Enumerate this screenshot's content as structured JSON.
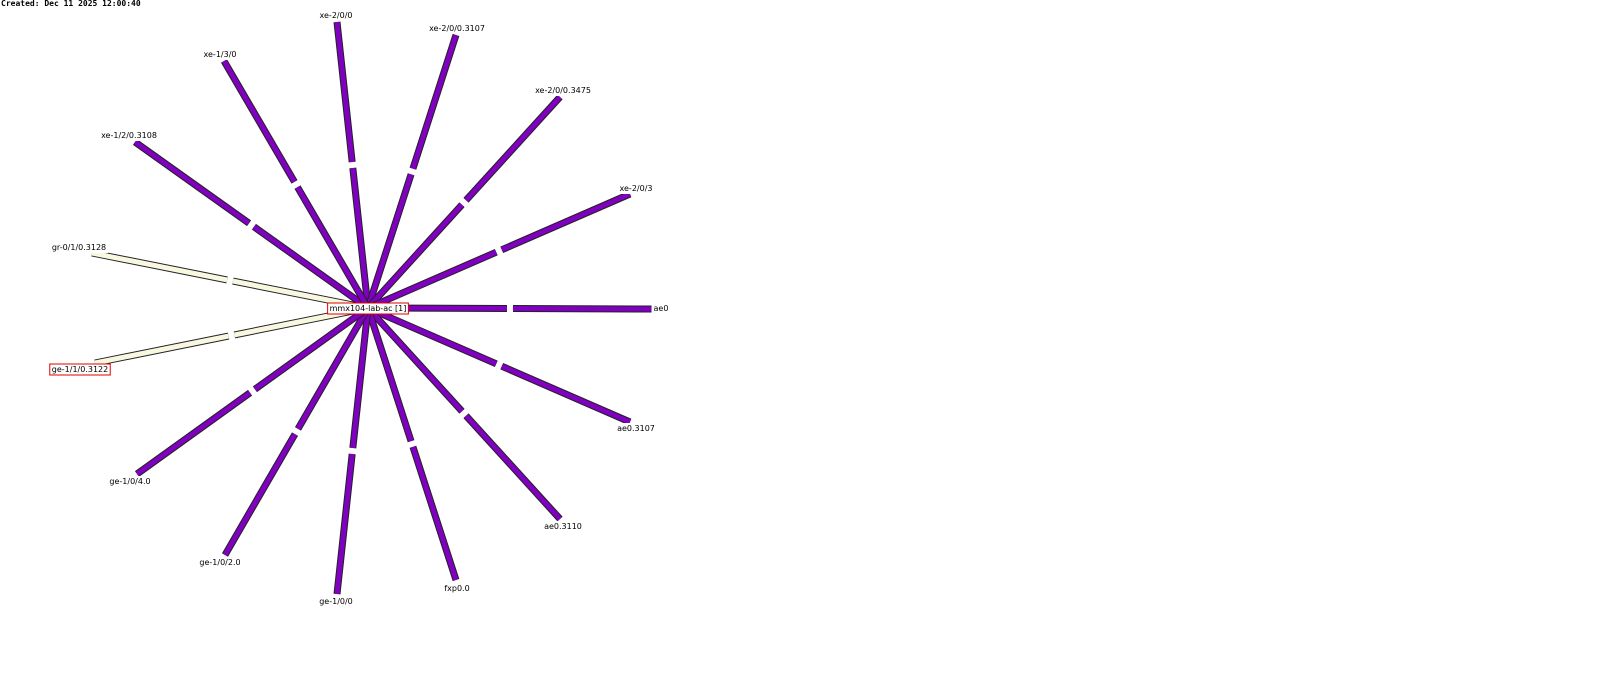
{
  "header": {
    "created": "Created: Dec 11 2025 12:00:40"
  },
  "center": {
    "label": "mmx104-lab-ac [1]",
    "highlight": true
  },
  "nodes": [
    {
      "label": "xe-2/0/0",
      "color": "#8000c0"
    },
    {
      "label": "xe-2/0/0.3107",
      "color": "#8000c0"
    },
    {
      "label": "xe-2/0/0.3475",
      "color": "#8000c0"
    },
    {
      "label": "xe-2/0/3",
      "color": "#8000c0"
    },
    {
      "label": "ae0",
      "color": "#8000c0"
    },
    {
      "label": "ae0.3107",
      "color": "#8000c0"
    },
    {
      "label": "ae0.3110",
      "color": "#8000c0"
    },
    {
      "label": "fxp0.0",
      "color": "#8000c0"
    },
    {
      "label": "ge-1/0/0",
      "color": "#8000c0"
    },
    {
      "label": "ge-1/0/2.0",
      "color": "#8000c0"
    },
    {
      "label": "ge-1/0/4.0",
      "color": "#8000c0"
    },
    {
      "label": "ge-1/1/0.3122",
      "color": "#f8f8e0",
      "highlight": true
    },
    {
      "label": "gr-0/1/0.3128",
      "color": "#f8f8e0"
    },
    {
      "label": "xe-1/2/0.3108",
      "color": "#8000c0"
    },
    {
      "label": "xe-1/3/0",
      "color": "#8000c0"
    }
  ]
}
